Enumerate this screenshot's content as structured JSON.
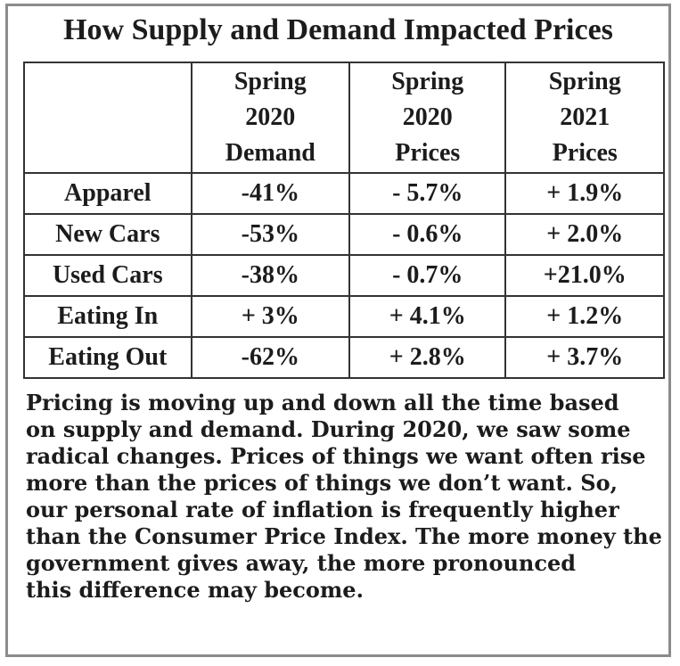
{
  "title": "How Supply and Demand Impacted Prices",
  "table": {
    "headers": [
      [],
      [
        "Spring",
        "2020",
        "Demand"
      ],
      [
        "Spring",
        "2020",
        "Prices"
      ],
      [
        "Spring",
        "2021",
        "Prices"
      ]
    ],
    "rows": [
      {
        "label": "Apparel",
        "cells": [
          "-41%",
          "- 5.7%",
          "+ 1.9%"
        ]
      },
      {
        "label": "New Cars",
        "cells": [
          "-53%",
          "- 0.6%",
          "+ 2.0%"
        ]
      },
      {
        "label": "Used Cars",
        "cells": [
          "-38%",
          "- 0.7%",
          "+21.0%"
        ]
      },
      {
        "label": "Eating In",
        "cells": [
          "+ 3%",
          "+ 4.1%",
          "+ 1.2%"
        ]
      },
      {
        "label": "Eating Out",
        "cells": [
          "-62%",
          "+ 2.8%",
          "+ 3.7%"
        ]
      }
    ]
  },
  "paragraph": [
    "Pricing is moving up and down all the time based",
    "on supply and demand. During 2020, we saw some",
    "radical changes. Prices of things we want often rise",
    "more than the prices of things we don’t want. So,",
    "our personal rate of inflation is frequently higher",
    "than the Consumer Price Index. The more money the",
    "government gives away, the more pronounced",
    "this difference may become."
  ]
}
